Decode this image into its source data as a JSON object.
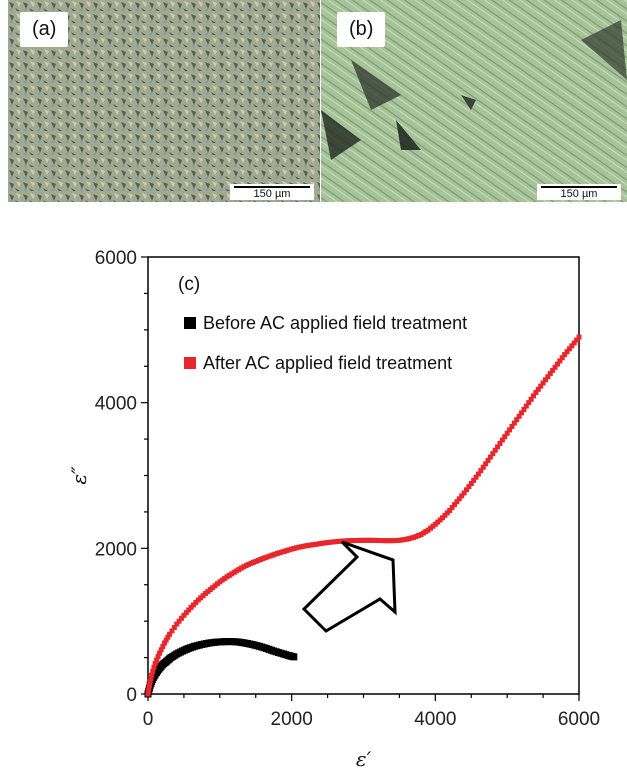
{
  "panels": {
    "a": {
      "label": "(a)",
      "scale_bar": "150 µm"
    },
    "b": {
      "label": "(b)",
      "scale_bar": "150 µm"
    }
  },
  "chart_data": {
    "type": "scatter",
    "panel_label": "(c)",
    "title": "",
    "xlabel": "ε′",
    "ylabel": "ε″",
    "xlim": [
      0,
      6000
    ],
    "ylim": [
      0,
      6000
    ],
    "xticks": [
      0,
      2000,
      4000,
      6000
    ],
    "yticks": [
      0,
      2000,
      4000,
      6000
    ],
    "legend_position": "top-left",
    "grid": false,
    "series": [
      {
        "name": "Before AC applied field treatment",
        "color": "#000000",
        "x": [
          0,
          30,
          60,
          100,
          150,
          200,
          260,
          320,
          400,
          480,
          560,
          650,
          750,
          850,
          950,
          1050,
          1150,
          1250,
          1350,
          1450,
          1550,
          1650,
          1750,
          1850,
          1950,
          2030
        ],
        "y": [
          0,
          120,
          200,
          270,
          340,
          400,
          450,
          500,
          550,
          590,
          625,
          655,
          680,
          700,
          712,
          718,
          720,
          715,
          700,
          680,
          655,
          625,
          590,
          560,
          530,
          510
        ]
      },
      {
        "name": "After AC applied field treatment",
        "color": "#e8262b",
        "x": [
          0,
          20,
          50,
          100,
          160,
          230,
          300,
          400,
          500,
          600,
          700,
          800,
          900,
          1000,
          1100,
          1200,
          1300,
          1400,
          1500,
          1600,
          1700,
          1800,
          1900,
          2000,
          2100,
          2200,
          2300,
          2400,
          2500,
          2600,
          2700,
          2800,
          2900,
          3000,
          3100,
          3200,
          3300,
          3400,
          3500,
          3600,
          3700,
          3800,
          3900,
          4000,
          4100,
          4200,
          4300,
          4400,
          4500,
          4600,
          4700,
          4800,
          4900,
          5000,
          5100,
          5200,
          5300,
          5400,
          5500,
          5600,
          5700,
          5800,
          5900,
          6000
        ],
        "y": [
          0,
          120,
          260,
          420,
          560,
          700,
          820,
          960,
          1080,
          1190,
          1290,
          1380,
          1460,
          1540,
          1610,
          1670,
          1730,
          1780,
          1820,
          1860,
          1895,
          1930,
          1960,
          1990,
          2015,
          2035,
          2050,
          2065,
          2080,
          2090,
          2100,
          2105,
          2108,
          2110,
          2110,
          2108,
          2105,
          2105,
          2110,
          2125,
          2150,
          2190,
          2250,
          2330,
          2420,
          2520,
          2640,
          2760,
          2890,
          3020,
          3160,
          3300,
          3440,
          3580,
          3720,
          3860,
          4000,
          4140,
          4270,
          4400,
          4530,
          4660,
          4780,
          4900
        ]
      }
    ],
    "annotation": {
      "shape": "arrow",
      "direction": "up-right"
    }
  }
}
